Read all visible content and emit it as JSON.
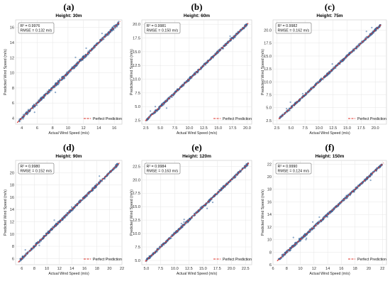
{
  "colors": {
    "point": "#3f7fc0",
    "point_edge": "#1f3f70",
    "identity": "#e0312a",
    "grid": "#e6e6e6",
    "frame": "#c8c8c8"
  },
  "chart_data": [
    {
      "type": "scatter",
      "label": "(a)",
      "title": "Height: 30m",
      "xlabel": "Actual Wind Speed (m/s)",
      "ylabel": "Predicted Wind Speed (m/s)",
      "xlim": [
        3.2,
        17.0
      ],
      "ylim": [
        3.2,
        17.0
      ],
      "xticks": [
        "4",
        "6",
        "8",
        "10",
        "12",
        "14",
        "16"
      ],
      "yticks": [
        "4",
        "6",
        "8",
        "10",
        "12",
        "14",
        "16"
      ],
      "range": [
        3.6,
        16.6
      ],
      "stats": [
        "R² = 0.9976",
        "RMSE = 0.132 m/s"
      ],
      "legend": "Perfect Prediction"
    },
    {
      "type": "scatter",
      "label": "(b)",
      "title": "Height: 60m",
      "xlabel": "Actual Wind Speed (m/s)",
      "ylabel": "Predicted Wind Speed (m/s)",
      "xlim": [
        1.8,
        20.8
      ],
      "ylim": [
        1.8,
        20.8
      ],
      "xticks": [
        "2.5",
        "5.0",
        "7.5",
        "10.0",
        "12.5",
        "15.0",
        "17.5",
        "20.0"
      ],
      "yticks": [
        "2.5",
        "5.0",
        "7.5",
        "10.0",
        "12.5",
        "15.0",
        "17.5",
        "20.0"
      ],
      "range": [
        2.6,
        20.0
      ],
      "stats": [
        "R² = 0.9981",
        "RMSE = 0.150 m/s"
      ],
      "legend": "Perfect Prediction"
    },
    {
      "type": "scatter",
      "label": "(c)",
      "title": "Height: 75m",
      "xlabel": "Actual Wind Speed (m/s)",
      "ylabel": "Predicted Wind Speed (m/s)",
      "xlim": [
        1.8,
        22.0
      ],
      "ylim": [
        1.8,
        22.0
      ],
      "xticks": [
        "2.5",
        "5.0",
        "7.5",
        "10.0",
        "12.5",
        "15.0",
        "17.5",
        "20.0"
      ],
      "yticks": [
        "2.5",
        "5.0",
        "7.5",
        "10.0",
        "12.5",
        "15.0",
        "17.5",
        "20.0"
      ],
      "range": [
        3.0,
        21.0
      ],
      "stats": [
        "R² = 0.9982",
        "RMSE = 0.162 m/s"
      ],
      "legend": "Perfect Prediction"
    },
    {
      "type": "scatter",
      "label": "(d)",
      "title": "Height: 90m",
      "xlabel": "Actual Wind Speed (m/s)",
      "ylabel": "Predicted Wind Speed (m/s)",
      "xlim": [
        5.0,
        22.0
      ],
      "ylim": [
        5.0,
        22.0
      ],
      "xticks": [
        "6",
        "8",
        "10",
        "12",
        "14",
        "16",
        "18",
        "20",
        "22"
      ],
      "yticks": [
        "6",
        "8",
        "10",
        "12",
        "14",
        "16",
        "18",
        "20"
      ],
      "range": [
        5.6,
        21.4
      ],
      "stats": [
        "R² = 0.9980",
        "RMSE = 0.152 m/s"
      ],
      "legend": "Perfect Prediction"
    },
    {
      "type": "scatter",
      "label": "(e)",
      "title": "Height: 120m",
      "xlabel": "Actual Wind Speed (m/s)",
      "ylabel": "Predicted Wind Speed (m/s)",
      "xlim": [
        4.2,
        23.6
      ],
      "ylim": [
        4.2,
        23.6
      ],
      "xticks": [
        "5.0",
        "7.5",
        "10.0",
        "12.5",
        "15.0",
        "17.5",
        "20.0",
        "22.5"
      ],
      "yticks": [
        "5.0",
        "7.5",
        "10.0",
        "12.5",
        "15.0",
        "17.5",
        "20.0",
        "22.5"
      ],
      "range": [
        5.0,
        23.0
      ],
      "stats": [
        "R² = 0.9984",
        "RMSE = 0.163 m/s"
      ],
      "legend": "Perfect Prediction"
    },
    {
      "type": "scatter",
      "label": "(f)",
      "title": "Height: 150m",
      "xlabel": "Actual Wind Speed (m/s)",
      "ylabel": "Predicted Wind Speed (m/s)",
      "xlim": [
        6.0,
        22.6
      ],
      "ylim": [
        6.0,
        22.6
      ],
      "xticks": [
        "6",
        "8",
        "10",
        "12",
        "14",
        "16",
        "18",
        "20",
        "22"
      ],
      "yticks": [
        "6",
        "8",
        "10",
        "12",
        "14",
        "16",
        "18",
        "20",
        "22"
      ],
      "range": [
        6.8,
        22.0
      ],
      "stats": [
        "R² = 0.9990",
        "RMSE = 0.124 m/s"
      ],
      "legend": "Perfect Prediction"
    }
  ]
}
